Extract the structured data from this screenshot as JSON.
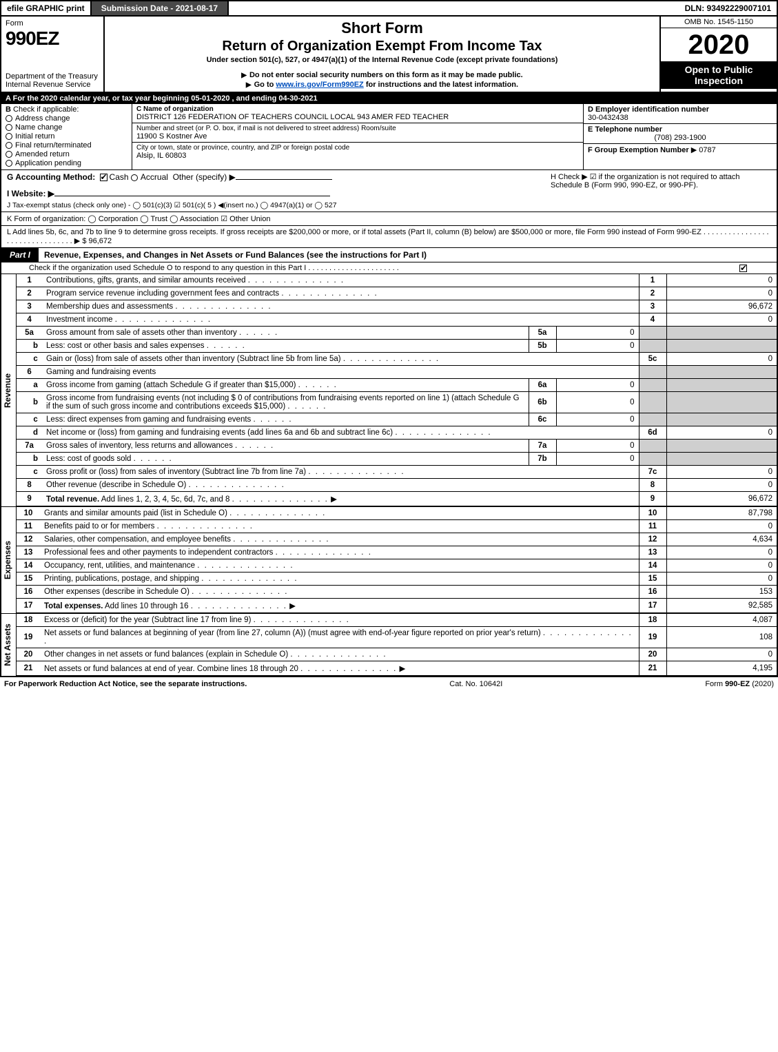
{
  "topbar": {
    "efile": "efile GRAPHIC print",
    "submission": "Submission Date - 2021-08-17",
    "dln": "DLN: 93492229007101"
  },
  "header": {
    "form_label": "Form",
    "form_number": "990EZ",
    "dept": "Department of the Treasury\nInternal Revenue Service",
    "title1": "Short Form",
    "title2": "Return of Organization Exempt From Income Tax",
    "subtitle": "Under section 501(c), 527, or 4947(a)(1) of the Internal Revenue Code (except private foundations)",
    "warn": "Do not enter social security numbers on this form as it may be made public.",
    "goto_pre": "Go to ",
    "goto_link": "www.irs.gov/Form990EZ",
    "goto_post": " for instructions and the latest information.",
    "omb": "OMB No. 1545-1150",
    "year": "2020",
    "open": "Open to Public Inspection"
  },
  "line_a": "For the 2020 calendar year, or tax year beginning 05-01-2020 , and ending 04-30-2021",
  "box_b": {
    "title": "Check if applicable:",
    "items": [
      "Address change",
      "Name change",
      "Initial return",
      "Final return/terminated",
      "Amended return",
      "Application pending"
    ]
  },
  "box_c": {
    "name_label": "C Name of organization",
    "name": "DISTRICT 126 FEDERATION OF TEACHERS COUNCIL LOCAL 943 AMER FED TEACHER",
    "addr_label": "Number and street (or P. O. box, if mail is not delivered to street address)       Room/suite",
    "addr": "11900 S Kostner Ave",
    "city_label": "City or town, state or province, country, and ZIP or foreign postal code",
    "city": "Alsip, IL  60803"
  },
  "box_d": {
    "ein_label": "D Employer identification number",
    "ein": "30-0432438",
    "tel_label": "E Telephone number",
    "tel": "(708) 293-1900",
    "grp_label": "F Group Exemption Number",
    "grp": "▶ 0787"
  },
  "line_g": {
    "label": "G Accounting Method:",
    "cash": "Cash",
    "accrual": "Accrual",
    "other": "Other (specify) ▶"
  },
  "line_h": "H   Check ▶  ☑  if the organization is not required to attach Schedule B (Form 990, 990-EZ, or 990-PF).",
  "line_i": "I Website: ▶",
  "line_j": "J Tax-exempt status (check only one) -  ◯ 501(c)(3)  ☑ 501(c)( 5 ) ◀(insert no.)  ◯ 4947(a)(1) or  ◯ 527",
  "line_k": "K Form of organization:   ◯ Corporation   ◯ Trust   ◯ Association   ☑ Other Union",
  "line_l": "L Add lines 5b, 6c, and 7b to line 9 to determine gross receipts. If gross receipts are $200,000 or more, or if total assets (Part II, column (B) below) are $500,000 or more, file Form 990 instead of Form 990-EZ . . . . . . . . . . . . . . . . . . . . . . . . . . . . . . . .  ▶ $ 96,672",
  "part1": {
    "tab": "Part I",
    "title": "Revenue, Expenses, and Changes in Net Assets or Fund Balances (see the instructions for Part I)",
    "check": "Check if the organization used Schedule O to respond to any question in this Part I . . . . . . . . . . . . . . . . . . . . . ."
  },
  "sections": {
    "revenue": "Revenue",
    "expenses": "Expenses",
    "netassets": "Net Assets"
  },
  "rows": [
    {
      "n": "1",
      "d": "Contributions, gifts, grants, and similar amounts received",
      "ln": "1",
      "amt": "0"
    },
    {
      "n": "2",
      "d": "Program service revenue including government fees and contracts",
      "ln": "2",
      "amt": "0"
    },
    {
      "n": "3",
      "d": "Membership dues and assessments",
      "ln": "3",
      "amt": "96,672"
    },
    {
      "n": "4",
      "d": "Investment income",
      "ln": "4",
      "amt": "0"
    },
    {
      "n": "5a",
      "d": "Gross amount from sale of assets other than inventory",
      "bl": "5a",
      "bv": "0",
      "shade": true
    },
    {
      "n": "b",
      "d": "Less: cost or other basis and sales expenses",
      "bl": "5b",
      "bv": "0",
      "shade": true
    },
    {
      "n": "c",
      "d": "Gain or (loss) from sale of assets other than inventory (Subtract line 5b from line 5a)",
      "ln": "5c",
      "amt": "0"
    },
    {
      "n": "6",
      "d": "Gaming and fundraising events",
      "shade": true,
      "noamt": true
    },
    {
      "n": "a",
      "d": "Gross income from gaming (attach Schedule G if greater than $15,000)",
      "bl": "6a",
      "bv": "0",
      "shade": true
    },
    {
      "n": "b",
      "d": "Gross income from fundraising events (not including $ 0            of contributions from fundraising events reported on line 1) (attach Schedule G if the sum of such gross income and contributions exceeds $15,000)",
      "bl": "6b",
      "bv": "0",
      "shade": true
    },
    {
      "n": "c",
      "d": "Less: direct expenses from gaming and fundraising events",
      "bl": "6c",
      "bv": "0",
      "shade": true
    },
    {
      "n": "d",
      "d": "Net income or (loss) from gaming and fundraising events (add lines 6a and 6b and subtract line 6c)",
      "ln": "6d",
      "amt": "0"
    },
    {
      "n": "7a",
      "d": "Gross sales of inventory, less returns and allowances",
      "bl": "7a",
      "bv": "0",
      "shade": true
    },
    {
      "n": "b",
      "d": "Less: cost of goods sold",
      "bl": "7b",
      "bv": "0",
      "shade": true
    },
    {
      "n": "c",
      "d": "Gross profit or (loss) from sales of inventory (Subtract line 7b from line 7a)",
      "ln": "7c",
      "amt": "0"
    },
    {
      "n": "8",
      "d": "Other revenue (describe in Schedule O)",
      "ln": "8",
      "amt": "0"
    },
    {
      "n": "9",
      "d": "Total revenue. Add lines 1, 2, 3, 4, 5c, 6d, 7c, and 8",
      "ln": "9",
      "amt": "96,672",
      "bold": true,
      "arrow": true
    }
  ],
  "rows_exp": [
    {
      "n": "10",
      "d": "Grants and similar amounts paid (list in Schedule O)",
      "ln": "10",
      "amt": "87,798"
    },
    {
      "n": "11",
      "d": "Benefits paid to or for members",
      "ln": "11",
      "amt": "0"
    },
    {
      "n": "12",
      "d": "Salaries, other compensation, and employee benefits",
      "ln": "12",
      "amt": "4,634"
    },
    {
      "n": "13",
      "d": "Professional fees and other payments to independent contractors",
      "ln": "13",
      "amt": "0"
    },
    {
      "n": "14",
      "d": "Occupancy, rent, utilities, and maintenance",
      "ln": "14",
      "amt": "0"
    },
    {
      "n": "15",
      "d": "Printing, publications, postage, and shipping",
      "ln": "15",
      "amt": "0"
    },
    {
      "n": "16",
      "d": "Other expenses (describe in Schedule O)",
      "ln": "16",
      "amt": "153"
    },
    {
      "n": "17",
      "d": "Total expenses. Add lines 10 through 16",
      "ln": "17",
      "amt": "92,585",
      "bold": true,
      "arrow": true
    }
  ],
  "rows_na": [
    {
      "n": "18",
      "d": "Excess or (deficit) for the year (Subtract line 17 from line 9)",
      "ln": "18",
      "amt": "4,087"
    },
    {
      "n": "19",
      "d": "Net assets or fund balances at beginning of year (from line 27, column (A)) (must agree with end-of-year figure reported on prior year's return)",
      "ln": "19",
      "amt": "108"
    },
    {
      "n": "20",
      "d": "Other changes in net assets or fund balances (explain in Schedule O)",
      "ln": "20",
      "amt": "0"
    },
    {
      "n": "21",
      "d": "Net assets or fund balances at end of year. Combine lines 18 through 20",
      "ln": "21",
      "amt": "4,195",
      "arrow": true
    }
  ],
  "footer": {
    "left": "For Paperwork Reduction Act Notice, see the separate instructions.",
    "mid": "Cat. No. 10642I",
    "right": "Form 990-EZ (2020)"
  }
}
